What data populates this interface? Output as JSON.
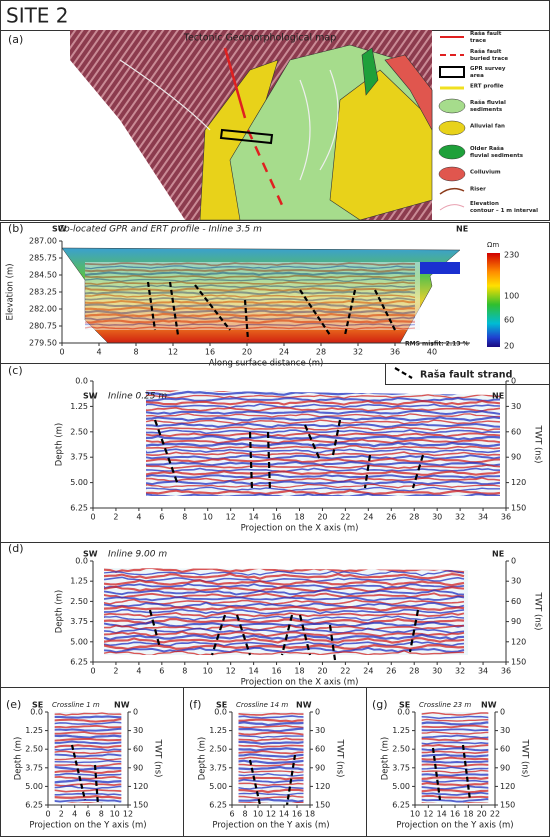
{
  "title": "SITE 2",
  "panel_a": {
    "label": "(a)",
    "map_title": "Tectonic Geomorphological map",
    "legend": [
      "Raša fault trace",
      "Raša fault buried trace",
      "GPR survey area",
      "ERT profile",
      "Raša fluvial sediments",
      "Alluvial fan",
      "Older Raša fluvial sediments",
      "Colluvium",
      "Riser",
      "Elevation contour – 1 m interval"
    ]
  },
  "panel_b": {
    "label": "(b)",
    "left_end": "SW",
    "right_end": "NE",
    "subtitle": "Co-located GPR and ERT profile - Inline 3.5 m",
    "y_label": "Elevation (m)",
    "y_ticks": [
      "287.00",
      "285.75",
      "284.50",
      "283.25",
      "282.00",
      "280.75",
      "279.50"
    ],
    "x_label": "Along surface distance (m)",
    "x_ticks": [
      "0",
      "4",
      "8",
      "12",
      "16",
      "20",
      "24",
      "28",
      "32",
      "36",
      "40"
    ],
    "colorbar_unit": "Ωm",
    "colorbar_ticks": [
      "230",
      "100",
      "60",
      "20"
    ],
    "misfit": "RMS misfit: 2.13 %",
    "fault_legend": "Raša fault strand"
  },
  "panel_c": {
    "label": "(c)",
    "left_end": "SW",
    "right_end": "NE",
    "subtitle": "Inline 0.25 m",
    "y_label": "Depth (m)",
    "y_ticks": [
      "0.0",
      "1.25",
      "2.50",
      "3.75",
      "5.00",
      "6.25"
    ],
    "y2_label": "TWT (ns)",
    "y2_ticks": [
      "0",
      "30",
      "60",
      "90",
      "120",
      "150"
    ],
    "x_label": "Projection on the X axis (m)",
    "x_ticks": [
      "0",
      "2",
      "4",
      "6",
      "8",
      "10",
      "12",
      "14",
      "16",
      "18",
      "20",
      "22",
      "24",
      "26",
      "28",
      "30",
      "32",
      "34",
      "36"
    ]
  },
  "panel_d": {
    "label": "(d)",
    "left_end": "SW",
    "right_end": "NE",
    "subtitle": "Inline 9.00 m",
    "y_label": "Depth (m)",
    "y_ticks": [
      "0.0",
      "1.25",
      "2.50",
      "3.75",
      "5.00",
      "6.25"
    ],
    "y2_label": "TWT (ns)",
    "y2_ticks": [
      "0",
      "30",
      "60",
      "90",
      "120",
      "150"
    ],
    "x_label": "Projection on the X axis (m)",
    "x_ticks": [
      "0",
      "2",
      "4",
      "6",
      "8",
      "10",
      "12",
      "14",
      "16",
      "18",
      "20",
      "22",
      "24",
      "26",
      "28",
      "30",
      "32",
      "34",
      "36"
    ]
  },
  "panel_e": {
    "label": "(e)",
    "left_end": "SE",
    "right_end": "NW",
    "subtitle": "Crossline 1 m",
    "y_label": "Depth (m)",
    "y_ticks": [
      "0.0",
      "1.25",
      "2.50",
      "3.75",
      "5.00",
      "6.25"
    ],
    "y2_label": "TWT (ns)",
    "y2_ticks": [
      "0",
      "30",
      "60",
      "90",
      "120",
      "150"
    ],
    "x_label": "Projection on the Y axis (m)",
    "x_ticks": [
      "0",
      "2",
      "4",
      "6",
      "8",
      "10",
      "12"
    ]
  },
  "panel_f": {
    "label": "(f)",
    "left_end": "SE",
    "right_end": "NW",
    "subtitle": "Crossline 14 m",
    "y_label": "Depth (m)",
    "y_ticks": [
      "0.0",
      "1.25",
      "2.50",
      "3.75",
      "5.00",
      "6.25"
    ],
    "y2_label": "TWT (ns)",
    "y2_ticks": [
      "0",
      "30",
      "60",
      "90",
      "120",
      "150"
    ],
    "x_label": "Projection on the Y axis (m)",
    "x_ticks": [
      "6",
      "8",
      "10",
      "12",
      "14",
      "16",
      "18"
    ]
  },
  "panel_g": {
    "label": "(g)",
    "left_end": "SE",
    "right_end": "NW",
    "subtitle": "Crossline 23 m",
    "y_label": "Depth (m)",
    "y_ticks": [
      "0.0",
      "1.25",
      "2.50",
      "3.75",
      "5.00",
      "6.25"
    ],
    "y2_label": "TWT (ns)",
    "y2_ticks": [
      "0",
      "30",
      "60",
      "90",
      "120",
      "150"
    ],
    "x_label": "Projection on the Y axis (m)",
    "x_ticks": [
      "10",
      "12",
      "14",
      "16",
      "18",
      "20",
      "22"
    ]
  }
}
